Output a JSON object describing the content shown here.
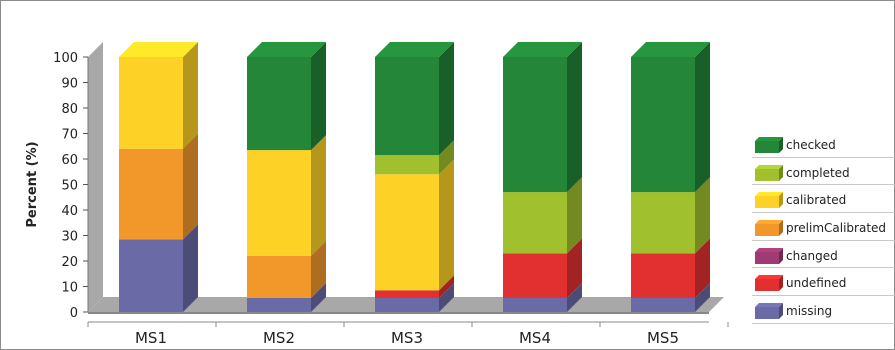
{
  "chart_data": {
    "type": "bar",
    "stacked": true,
    "style": "3d",
    "title": "",
    "xlabel": "",
    "ylabel": "Percent (%)",
    "ylim": [
      0,
      100
    ],
    "yticks": [
      0,
      10,
      20,
      30,
      40,
      50,
      60,
      70,
      80,
      90,
      100
    ],
    "grid": false,
    "legend_position": "right",
    "categories": [
      "MS1",
      "MS2",
      "MS3",
      "MS4",
      "MS5"
    ],
    "series": [
      {
        "name": "missing",
        "color": "#6a6aa6",
        "values": [
          28.5,
          5.5,
          5.5,
          5.5,
          5.5
        ]
      },
      {
        "name": "undefined",
        "color": "#e23030",
        "values": [
          0,
          0,
          3,
          17.5,
          17.5
        ]
      },
      {
        "name": "changed",
        "color": "#a03a72",
        "values": [
          0,
          0,
          0,
          0,
          0
        ]
      },
      {
        "name": "prelimCalibrated",
        "color": "#f2982b",
        "values": [
          35.5,
          16.5,
          0,
          0,
          0
        ]
      },
      {
        "name": "calibrated",
        "color": "#fdd125",
        "values": [
          36,
          41.5,
          45.5,
          0,
          0
        ]
      },
      {
        "name": "completed",
        "color": "#a0c02e",
        "values": [
          0,
          0,
          7.5,
          24,
          24
        ]
      },
      {
        "name": "checked",
        "color": "#238638",
        "values": [
          0,
          36.5,
          38.5,
          53,
          53
        ]
      }
    ],
    "legend_order": [
      "checked",
      "completed",
      "calibrated",
      "prelimCalibrated",
      "changed",
      "undefined",
      "missing"
    ]
  }
}
